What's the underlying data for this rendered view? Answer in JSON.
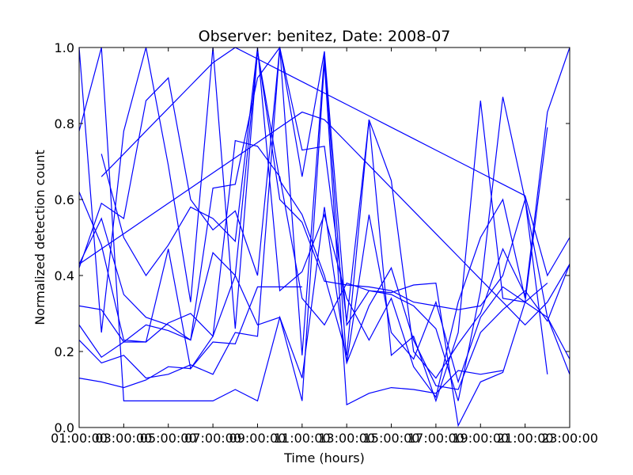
{
  "chart_data": {
    "type": "line",
    "title": "Observer: benitez, Date: 2008-07",
    "xlabel": "Time (hours)",
    "ylabel": "Normalized detection count",
    "xlim": [
      1,
      23
    ],
    "ylim": [
      0.0,
      1.0
    ],
    "xticks": [
      {
        "value": 1,
        "label": "01:00:00"
      },
      {
        "value": 3,
        "label": "03:00:00"
      },
      {
        "value": 5,
        "label": "05:00:00"
      },
      {
        "value": 7,
        "label": "07:00:00"
      },
      {
        "value": 9,
        "label": "09:00:00"
      },
      {
        "value": 11,
        "label": "11:00:00"
      },
      {
        "value": 13,
        "label": "13:00:00"
      },
      {
        "value": 15,
        "label": "15:00:00"
      },
      {
        "value": 17,
        "label": "17:00:00"
      },
      {
        "value": 19,
        "label": "19:00:00"
      },
      {
        "value": 21,
        "label": "21:00:00"
      },
      {
        "value": 23,
        "label": "23:00:00"
      }
    ],
    "yticks": [
      {
        "value": 0.0,
        "label": "0.0"
      },
      {
        "value": 0.2,
        "label": "0.2"
      },
      {
        "value": 0.4,
        "label": "0.4"
      },
      {
        "value": 0.6,
        "label": "0.6"
      },
      {
        "value": 0.8,
        "label": "0.8"
      },
      {
        "value": 1.0,
        "label": "1.0"
      }
    ],
    "grid": false,
    "legend": "none",
    "line_color": "#0000ff",
    "series": [
      {
        "x": [
          1,
          2,
          3,
          4,
          5,
          6,
          7,
          8,
          9,
          10,
          11
        ],
        "y": [
          0.13,
          0.12,
          0.105,
          0.125,
          0.16,
          0.155,
          0.225,
          0.22,
          0.37,
          0.37,
          0.37
        ]
      },
      {
        "x": [
          1,
          2,
          3,
          4,
          5,
          6,
          7,
          8,
          9,
          10,
          11,
          12,
          13,
          14,
          15,
          16,
          17,
          18,
          19,
          20,
          21,
          22,
          23
        ],
        "y": [
          0.32,
          0.31,
          0.225,
          0.225,
          0.275,
          0.3,
          0.24,
          0.4,
          0.27,
          0.29,
          0.13,
          0.58,
          0.17,
          0.32,
          0.42,
          0.23,
          0.11,
          0.1,
          0.25,
          0.31,
          0.36,
          0.28,
          0.43
        ]
      },
      {
        "x": [
          1,
          2,
          3,
          4,
          5,
          6,
          7,
          8,
          9,
          10,
          11,
          12,
          13,
          14,
          15,
          16,
          17,
          18,
          19,
          20,
          21,
          22,
          23
        ],
        "y": [
          0.27,
          0.185,
          0.225,
          0.27,
          0.255,
          0.23,
          0.46,
          0.4,
          0.99,
          0.6,
          0.54,
          0.385,
          0.375,
          0.37,
          0.36,
          0.33,
          0.32,
          0.31,
          0.32,
          0.4,
          0.6,
          0.29,
          0.18
        ]
      },
      {
        "x": [
          1,
          2,
          3,
          4,
          5,
          6,
          7,
          8,
          9,
          10,
          11,
          12,
          13,
          14,
          15,
          16,
          17,
          18,
          19,
          20,
          21,
          22
        ],
        "y": [
          0.62,
          0.48,
          0.23,
          0.225,
          0.47,
          0.155,
          0.24,
          0.755,
          0.74,
          0.66,
          0.34,
          0.27,
          0.38,
          0.36,
          0.355,
          0.375,
          0.38,
          0.005,
          0.12,
          0.145,
          0.33,
          0.38
        ]
      },
      {
        "x": [
          1,
          2,
          3,
          4,
          5,
          6,
          7,
          8,
          9,
          10,
          11,
          12,
          13,
          14,
          15,
          16,
          17,
          18,
          19,
          20,
          21,
          22
        ],
        "y": [
          0.43,
          0.55,
          0.35,
          0.29,
          0.27,
          0.23,
          0.63,
          0.64,
          0.92,
          1.0,
          0.66,
          0.99,
          0.27,
          0.36,
          0.35,
          0.32,
          0.26,
          0.07,
          0.36,
          0.87,
          0.6,
          0.14
        ]
      },
      {
        "x": [
          1,
          2,
          3,
          4,
          5,
          6,
          7,
          8,
          9,
          10,
          11,
          12,
          13,
          14,
          15,
          16,
          17,
          18,
          19,
          20
        ],
        "y": [
          0.78,
          1.0,
          0.07,
          0.07,
          0.07,
          0.07,
          0.07,
          0.1,
          0.07,
          0.29,
          0.07,
          0.96,
          0.06,
          0.09,
          0.105,
          0.1,
          0.09,
          0.15,
          0.14,
          0.15
        ]
      },
      {
        "x": [
          1,
          2,
          3,
          4,
          5,
          6,
          7,
          8,
          9,
          10,
          11,
          12,
          13,
          14,
          15,
          16,
          17,
          18,
          19,
          20,
          21,
          22
        ],
        "y": [
          1.0,
          0.25,
          0.78,
          1.0,
          0.69,
          0.33,
          1.0,
          0.26,
          0.99,
          0.65,
          0.56,
          0.4,
          0.19,
          0.81,
          0.19,
          0.24,
          0.07,
          0.25,
          0.86,
          0.34,
          0.33,
          0.79
        ]
      },
      {
        "x": [
          1,
          2,
          3,
          4,
          5,
          6,
          7,
          8,
          9,
          10,
          11,
          12,
          13,
          14,
          15,
          16,
          17,
          18,
          19,
          20,
          21
        ],
        "y": [
          0.42,
          0.59,
          0.55,
          0.86,
          0.92,
          0.6,
          0.52,
          0.57,
          0.4,
          1.0,
          0.73,
          0.74,
          0.28,
          0.81,
          0.65,
          0.2,
          0.13,
          0.22,
          0.3,
          0.47,
          0.35
        ]
      },
      {
        "x": [
          1,
          2,
          3,
          4,
          5,
          6,
          7,
          8,
          9,
          10,
          11,
          12,
          13,
          14,
          15,
          16,
          17,
          18,
          19,
          20,
          21,
          22,
          23
        ],
        "y": [
          0.23,
          0.17,
          0.19,
          0.13,
          0.14,
          0.165,
          0.14,
          0.25,
          0.24,
          1.0,
          0.19,
          0.98,
          0.17,
          0.56,
          0.25,
          0.18,
          0.33,
          0.12,
          0.29,
          0.37,
          0.33,
          0.29,
          0.14
        ]
      },
      {
        "x": [
          2,
          3,
          4,
          5,
          6,
          7,
          8,
          9,
          10,
          11,
          12,
          13,
          14,
          15,
          16,
          17,
          18,
          19,
          20,
          21,
          22,
          23
        ],
        "y": [
          0.72,
          0.5,
          0.4,
          0.48,
          0.58,
          0.55,
          0.49,
          1.0,
          0.36,
          0.41,
          0.56,
          0.34,
          0.23,
          0.34,
          0.16,
          0.08,
          0.33,
          0.5,
          0.6,
          0.34,
          0.83,
          1.0
        ]
      },
      {
        "x": [
          2,
          3,
          4,
          5,
          6,
          7,
          8,
          9,
          10,
          11,
          12,
          13,
          14,
          15,
          16,
          17,
          18,
          19,
          20,
          21,
          22,
          23
        ],
        "y": [
          0.66,
          0.72,
          0.78,
          0.84,
          0.9,
          0.96,
          1.0,
          0.97,
          0.94,
          0.91,
          0.88,
          0.85,
          0.82,
          0.79,
          0.76,
          0.73,
          0.7,
          0.67,
          0.64,
          0.61,
          0.4,
          0.5
        ]
      },
      {
        "x": [
          1,
          2,
          3,
          4,
          5,
          6,
          7,
          8,
          9,
          10,
          11,
          12,
          13,
          14,
          15,
          16,
          17,
          18,
          19,
          20,
          21,
          22,
          23
        ],
        "y": [
          0.43,
          0.47,
          0.51,
          0.55,
          0.59,
          0.63,
          0.67,
          0.71,
          0.75,
          0.79,
          0.83,
          0.81,
          0.75,
          0.69,
          0.63,
          0.57,
          0.51,
          0.45,
          0.39,
          0.33,
          0.27,
          0.33,
          0.43
        ]
      }
    ]
  }
}
